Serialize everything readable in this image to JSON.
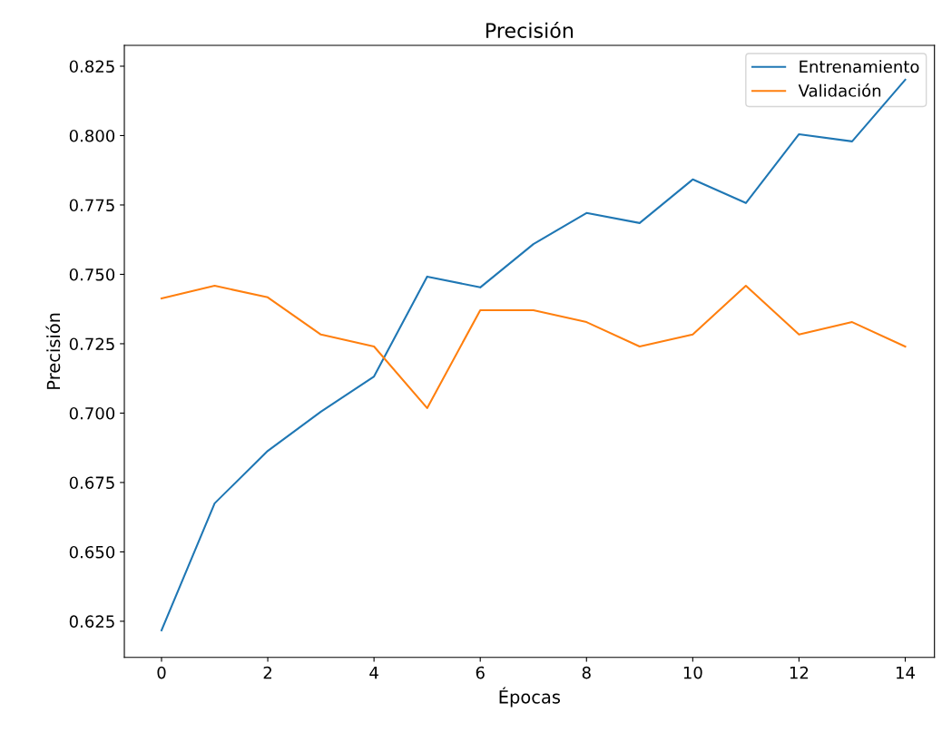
{
  "chart_data": {
    "type": "line",
    "title": "Precisión",
    "xlabel": "Épocas",
    "ylabel": "Precisión",
    "x": [
      0,
      1,
      2,
      3,
      4,
      5,
      6,
      7,
      8,
      9,
      10,
      11,
      12,
      13,
      14
    ],
    "series": [
      {
        "name": "Entrenamiento",
        "color": "#1f77b4",
        "values": [
          0.6217,
          0.6675,
          0.6864,
          0.7005,
          0.7132,
          0.7492,
          0.7453,
          0.7609,
          0.7721,
          0.7685,
          0.7842,
          0.7757,
          0.8005,
          0.7979,
          0.8201
        ]
      },
      {
        "name": "Validación",
        "color": "#ff7f0e",
        "values": [
          0.7413,
          0.7459,
          0.7417,
          0.7283,
          0.724,
          0.7018,
          0.7371,
          0.7371,
          0.7328,
          0.724,
          0.7283,
          0.7459,
          0.7283,
          0.7328,
          0.724
        ]
      }
    ],
    "xlim": [
      -0.7,
      14.55
    ],
    "ylim": [
      0.612,
      0.8325
    ],
    "xticks": [
      0,
      2,
      4,
      6,
      8,
      10,
      12,
      14
    ],
    "yticks": [
      {
        "value": 0.625,
        "label": "0.625"
      },
      {
        "value": 0.65,
        "label": "0.650"
      },
      {
        "value": 0.675,
        "label": "0.675"
      },
      {
        "value": 0.7,
        "label": "0.700"
      },
      {
        "value": 0.725,
        "label": "0.725"
      },
      {
        "value": 0.75,
        "label": "0.750"
      },
      {
        "value": 0.775,
        "label": "0.775"
      },
      {
        "value": 0.8,
        "label": "0.800"
      },
      {
        "value": 0.825,
        "label": "0.825"
      }
    ],
    "grid": false,
    "legend": "top right",
    "marker": "none",
    "line_style": "solid"
  }
}
